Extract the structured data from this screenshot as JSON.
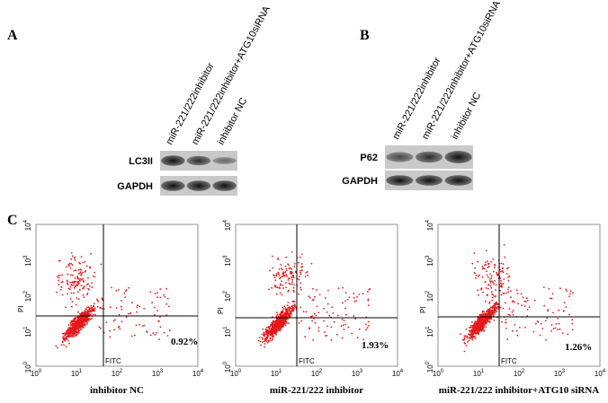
{
  "panels": [
    {
      "label": "A",
      "lanes": [
        "miR-221/222inhibitor",
        "miR-221/222inhibitor+ATG10siRNA",
        "inhibitor NC"
      ],
      "bands": [
        "LC3II",
        "GAPDH"
      ]
    },
    {
      "label": "B",
      "lanes": [
        "miR-221/222inhibitor",
        "miR-221/222inhibitor+ATG10siRNA",
        "inhibitor NC"
      ],
      "bands": [
        "P62",
        "GAPDH"
      ]
    }
  ],
  "flow": {
    "label": "C",
    "x_label": "FITC",
    "y_label": "PI",
    "ticks": [
      {
        "base": "10",
        "exp": "0"
      },
      {
        "base": "10",
        "exp": "1"
      },
      {
        "base": "10",
        "exp": "2"
      },
      {
        "base": "10",
        "exp": "3"
      },
      {
        "base": "10",
        "exp": "4"
      }
    ],
    "plots": [
      {
        "caption": "inhibitor NC",
        "percent": "0.92%"
      },
      {
        "caption": "miR-221/222 inhibitor",
        "percent": "1.93%"
      },
      {
        "caption": "miR-221/222 inhibitor+ATG10 siRNA",
        "percent": "1.26%"
      }
    ]
  }
}
